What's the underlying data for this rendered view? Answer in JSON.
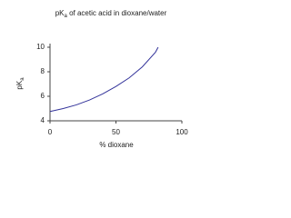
{
  "chart_data": {
    "type": "line",
    "title": [
      "pK",
      "a",
      " of acetic acid in dioxane/water"
    ],
    "ylabel": [
      "pK",
      "a"
    ],
    "xlabel": "% dioxane",
    "x": [
      0,
      10,
      20,
      30,
      40,
      50,
      60,
      70,
      80,
      82
    ],
    "series": [
      {
        "color": "#33339a",
        "values": [
          4.76,
          5.0,
          5.3,
          5.7,
          6.2,
          6.8,
          7.5,
          8.4,
          9.6,
          10.0
        ]
      }
    ],
    "xlim": [
      0,
      100
    ],
    "xticks": [
      0,
      50,
      100
    ],
    "ylim": [
      4,
      10
    ],
    "yticks": [
      4,
      6,
      8,
      10
    ],
    "grid": false
  }
}
